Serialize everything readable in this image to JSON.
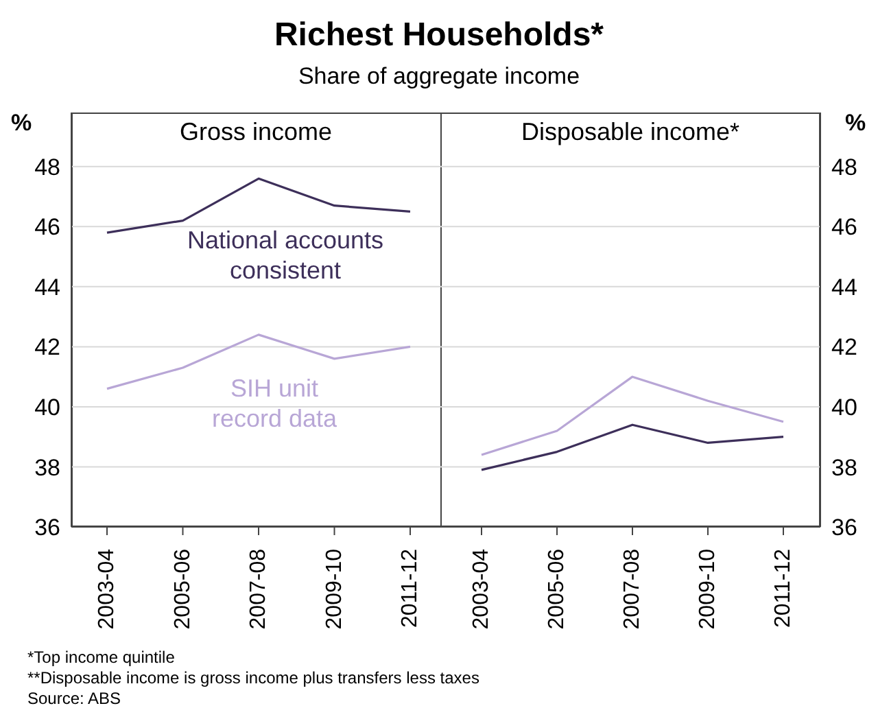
{
  "chart_data": [
    {
      "type": "line",
      "title": "Richest Households*",
      "subtitle": "Share of aggregate income",
      "annotations": [
        "Gross income"
      ],
      "ylabel": "%",
      "categories": [
        "2003-04",
        "2005-06",
        "2007-08",
        "2009-10",
        "2011-12"
      ],
      "series": [
        {
          "name": "National accounts consistent",
          "color": "#3d2f5a",
          "values": [
            45.8,
            46.2,
            47.6,
            46.7,
            46.5
          ]
        },
        {
          "name": "SIH unit record data",
          "color": "#b8a6d6",
          "values": [
            40.6,
            41.3,
            42.4,
            41.6,
            42.0
          ]
        }
      ],
      "ylim": [
        36,
        49.8
      ],
      "yticks": [
        36,
        38,
        40,
        42,
        44,
        46,
        48
      ],
      "grid": "y",
      "legend": false,
      "marker": "none",
      "line_style": "solid"
    },
    {
      "type": "line",
      "title": "Disposable income*",
      "ylabel": "%",
      "annotations": [
        "*Top income quintile",
        "**Disposable income is gross income plus transfers less taxes",
        "Source: ABS"
      ],
      "categories": [
        "2003-04",
        "2005-06",
        "2007-08",
        "2009-10",
        "2011-12"
      ],
      "series": [
        {
          "color": "#3d2f5a",
          "values": [
            37.9,
            38.5,
            39.4,
            38.8,
            39.0
          ]
        },
        {
          "color": "#b8a6d6",
          "values": [
            38.4,
            39.2,
            41.0,
            40.2,
            39.5
          ]
        }
      ],
      "ylim": [
        36,
        49.8
      ],
      "yticks": [
        36,
        38,
        40,
        42,
        44,
        46,
        48
      ],
      "grid": "y",
      "legend": false,
      "marker": "none",
      "line_style": "solid"
    }
  ]
}
